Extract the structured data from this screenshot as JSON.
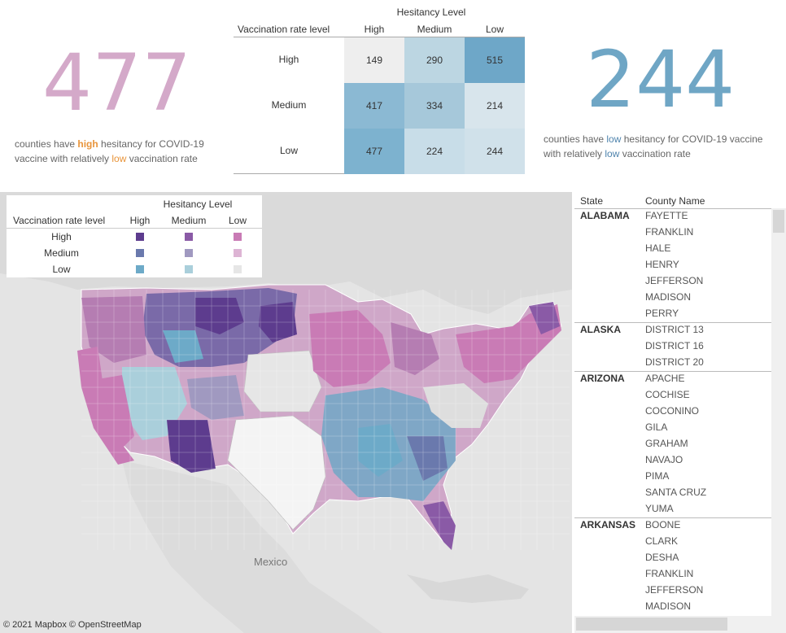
{
  "kpi_left": {
    "value": "477",
    "text_pre": "counties have ",
    "text_em1": "high",
    "text_mid": " hesitancy for COVID-19 vaccine with relatively ",
    "text_em2": "low",
    "text_post": " vaccination rate"
  },
  "kpi_right": {
    "value": "244",
    "text_pre": "counties have ",
    "text_em1": "low",
    "text_mid": " hesitancy for COVID-19 vaccine with relatively ",
    "text_em2": "low",
    "text_post": " vaccination rate"
  },
  "matrix": {
    "title": "Hesitancy Level",
    "row_header": "Vaccination rate level",
    "columns": [
      "High",
      "Medium",
      "Low"
    ],
    "rows": [
      {
        "label": "High",
        "values": [
          "149",
          "290",
          "515"
        ],
        "colors": [
          "#eeeeee",
          "#bcd6e2",
          "#6ea7c8"
        ]
      },
      {
        "label": "Medium",
        "values": [
          "417",
          "334",
          "214"
        ],
        "colors": [
          "#8bb9d3",
          "#a6c8da",
          "#d8e5ec"
        ]
      },
      {
        "label": "Low",
        "values": [
          "477",
          "224",
          "244"
        ],
        "colors": [
          "#7db2cf",
          "#c8dde8",
          "#d0e1ea"
        ]
      }
    ]
  },
  "legend": {
    "title": "Hesitancy Level",
    "row_header": "Vaccination rate level",
    "columns": [
      "High",
      "Medium",
      "Low"
    ],
    "rows": [
      {
        "label": "High",
        "colors": [
          "#5d3c8e",
          "#8a5aa6",
          "#c97bb5"
        ]
      },
      {
        "label": "Medium",
        "colors": [
          "#6a79ad",
          "#a099c0",
          "#ddb4d4"
        ]
      },
      {
        "label": "Low",
        "colors": [
          "#6daac8",
          "#aacfdb",
          "#e6e6e6"
        ]
      }
    ]
  },
  "map": {
    "attribution": "© 2021 Mapbox  © OpenStreetMap",
    "label_mexico": "Mexico"
  },
  "table": {
    "headers": [
      "State",
      "County Name"
    ],
    "groups": [
      {
        "state": "ALABAMA",
        "counties": [
          "FAYETTE",
          "FRANKLIN",
          "HALE",
          "HENRY",
          "JEFFERSON",
          "MADISON",
          "PERRY"
        ]
      },
      {
        "state": "ALASKA",
        "counties": [
          "DISTRICT 13",
          "DISTRICT 16",
          "DISTRICT 20"
        ]
      },
      {
        "state": "ARIZONA",
        "counties": [
          "APACHE",
          "COCHISE",
          "COCONINO",
          "GILA",
          "GRAHAM",
          "NAVAJO",
          "PIMA",
          "SANTA CRUZ",
          "YUMA"
        ]
      },
      {
        "state": "ARKANSAS",
        "counties": [
          "BOONE",
          "CLARK",
          "DESHA",
          "FRANKLIN",
          "JEFFERSON",
          "MADISON"
        ]
      }
    ]
  }
}
